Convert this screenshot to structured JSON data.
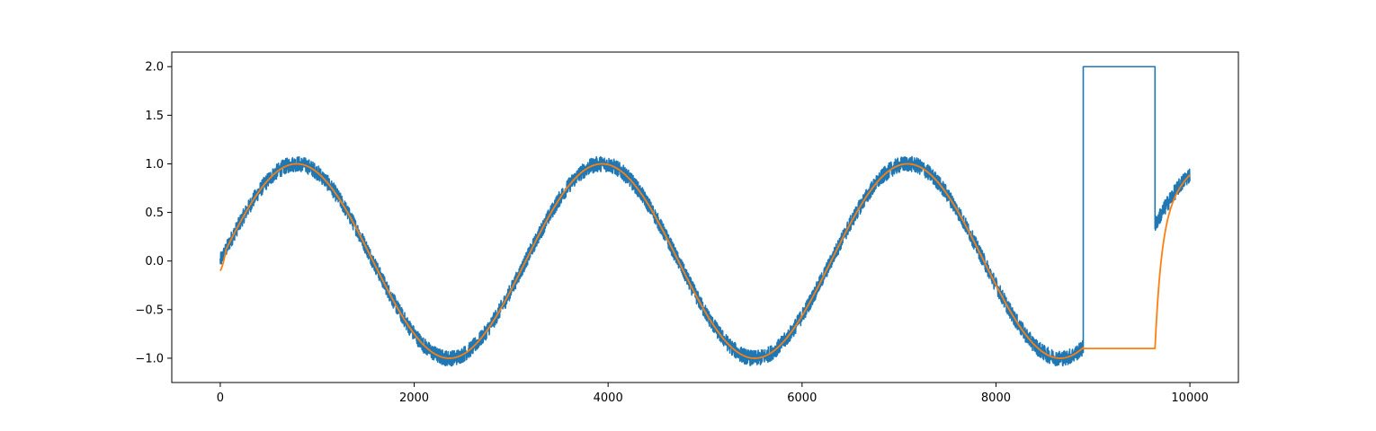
{
  "chart_data": {
    "type": "line",
    "title": "",
    "xlabel": "",
    "ylabel": "",
    "xlim": [
      -500,
      10500
    ],
    "ylim": [
      -1.25,
      2.15
    ],
    "xticks": [
      0,
      2000,
      4000,
      6000,
      8000,
      10000
    ],
    "yticks": [
      -1.0,
      -0.5,
      0.0,
      0.5,
      1.0,
      1.5,
      2.0
    ],
    "xtick_labels": [
      "0",
      "2000",
      "4000",
      "6000",
      "8000",
      "10000"
    ],
    "ytick_labels": [
      "−1.0",
      "−0.5",
      "0.0",
      "0.5",
      "1.0",
      "1.5",
      "2.0"
    ],
    "grid": false,
    "legend": "none",
    "series": [
      {
        "color": "#1f77b4",
        "noise_amplitude": 0.08,
        "segments": [
          {
            "kind": "sine",
            "x_start": 0,
            "x_end": 8900,
            "amplitude": 1.0,
            "period": 3150,
            "offset": 0.0
          },
          {
            "kind": "step",
            "x": 8900,
            "y_from": -0.88,
            "y_to": 2.0
          },
          {
            "kind": "flat",
            "x_start": 8900,
            "x_end": 9640,
            "y": 2.0
          },
          {
            "kind": "step",
            "x": 9640,
            "y_from": 2.0,
            "y_to": 0.35
          },
          {
            "kind": "sine",
            "x_start": 9640,
            "x_end": 10000,
            "amplitude": 1.0,
            "period": 3150,
            "offset": 0.0
          }
        ]
      },
      {
        "color": "#ff7f0e",
        "segments": [
          {
            "kind": "sine",
            "x_start": 0,
            "x_end": 8900,
            "amplitude": 1.0,
            "period": 3150,
            "offset": 0.0,
            "start_y": -0.1
          },
          {
            "kind": "flat",
            "x_start": 8900,
            "x_end": 9640,
            "y": -0.9
          },
          {
            "kind": "recovery",
            "x_start": 9640,
            "x_end": 10000,
            "y_from": -0.9,
            "target": "sine",
            "time_constant": 60
          }
        ]
      }
    ]
  }
}
